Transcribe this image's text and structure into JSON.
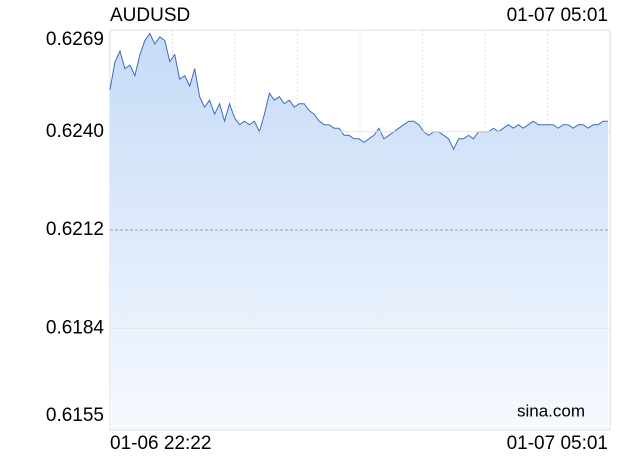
{
  "chart_data": {
    "type": "area",
    "title": "AUDUSD",
    "time": "01-07 05:01",
    "watermark": "sina.com",
    "categories": [
      "01-06 22:22",
      null,
      null,
      null,
      null,
      null,
      null,
      null,
      null,
      null,
      null,
      null,
      null,
      null,
      null,
      null,
      null,
      null,
      null,
      null,
      null,
      null,
      null,
      null,
      null,
      null,
      null,
      null,
      null,
      null,
      null,
      null,
      null,
      null,
      null,
      null,
      null,
      null,
      null,
      null,
      null,
      null,
      null,
      null,
      null,
      null,
      null,
      null,
      null,
      null,
      null,
      null,
      null,
      null,
      null,
      null,
      null,
      null,
      null,
      null,
      null,
      null,
      null,
      null,
      null,
      null,
      null,
      null,
      null,
      null,
      null,
      null,
      null,
      null,
      null,
      null,
      null,
      null,
      null,
      null,
      null,
      null,
      null,
      null,
      null,
      null,
      null,
      null,
      null,
      null,
      null,
      null,
      null,
      null,
      null,
      null,
      null,
      null,
      null,
      null,
      "01-07 05:01"
    ],
    "values": [
      0.6252,
      0.626,
      0.6263,
      0.6258,
      0.6259,
      0.6256,
      0.6262,
      0.6266,
      0.6268,
      0.6265,
      0.6267,
      0.6266,
      0.626,
      0.6262,
      0.6255,
      0.6256,
      0.6253,
      0.6258,
      0.625,
      0.6247,
      0.6249,
      0.6245,
      0.6248,
      0.6243,
      0.6248,
      0.6244,
      0.6242,
      0.6243,
      0.6242,
      0.6243,
      0.624,
      0.6245,
      0.6251,
      0.6249,
      0.625,
      0.6248,
      0.6249,
      0.6247,
      0.6248,
      0.6248,
      0.6246,
      0.6245,
      0.6243,
      0.6242,
      0.6242,
      0.6241,
      0.6241,
      0.6239,
      0.6239,
      0.6238,
      0.6238,
      0.6237,
      0.6238,
      0.6239,
      0.6241,
      0.6238,
      0.6239,
      0.624,
      0.6241,
      0.6242,
      0.6243,
      0.6243,
      0.6242,
      0.624,
      0.6239,
      0.624,
      0.624,
      0.6239,
      0.6238,
      0.6235,
      0.6238,
      0.6238,
      0.6239,
      0.6238,
      0.624,
      0.624,
      0.624,
      0.6241,
      0.624,
      0.6241,
      0.6242,
      0.6241,
      0.6242,
      0.6241,
      0.6242,
      0.6243,
      0.6242,
      0.6242,
      0.6242,
      0.6242,
      0.6241,
      0.6242,
      0.6242,
      0.6241,
      0.6242,
      0.6242,
      0.6241,
      0.6242,
      0.6242,
      0.6243,
      0.6243
    ],
    "color": "#3d6cbf",
    "fill_top": "#c6dbf7",
    "fill_bottom": "#f6f9fe",
    "ylim": [
      0.6155,
      0.6269
    ],
    "yticks": [
      0.6269,
      {
        "value": 0.624,
        "label": "0.6240"
      },
      0.6212,
      0.6184,
      0.6155
    ],
    "ytick_colors": [
      "#1a9e1a",
      "#1a9e1a",
      "#000000",
      "#e00000",
      "#e00000"
    ],
    "ytick_styles": [
      "solid",
      "solid",
      "dashed",
      "solid",
      "solid"
    ],
    "grid": true
  }
}
